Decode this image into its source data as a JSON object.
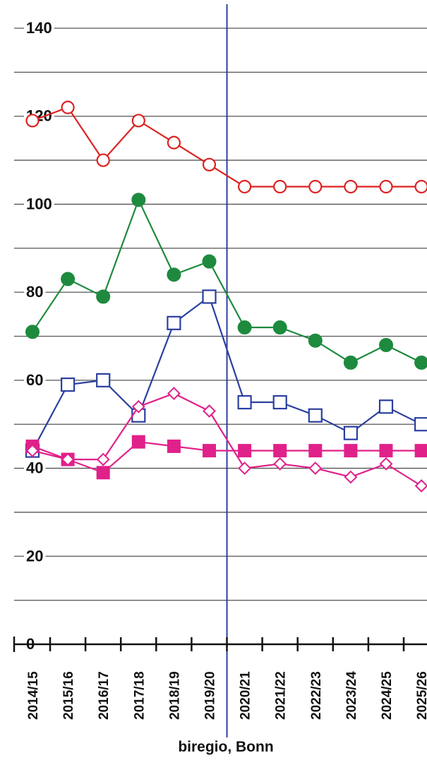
{
  "chart_data": {
    "type": "line",
    "categories": [
      "2014/15",
      "2015/16",
      "2016/17",
      "2017/18",
      "2018/19",
      "2019/20",
      "2020/21",
      "2021/22",
      "2022/23",
      "2023/24",
      "2024/25",
      "2025/26"
    ],
    "ylim": [
      0,
      140
    ],
    "yticks": [
      0,
      20,
      40,
      60,
      80,
      100,
      120,
      140
    ],
    "grid": true,
    "divider_after_category": "2019/20",
    "source": "biregio, Bonn",
    "series": [
      {
        "values": [
          119,
          122,
          110,
          119,
          114,
          109,
          104,
          104,
          104,
          104,
          104,
          104
        ],
        "color": "#dd2222",
        "marker": "circle-open"
      },
      {
        "values": [
          71,
          83,
          79,
          101,
          84,
          87,
          72,
          72,
          69,
          64,
          68,
          64
        ],
        "color": "#1e8a3e",
        "marker": "circle-filled"
      },
      {
        "values": [
          44,
          59,
          60,
          52,
          73,
          79,
          55,
          55,
          52,
          48,
          54,
          50
        ],
        "color": "#2b3fa0",
        "marker": "square-open"
      },
      {
        "values": [
          45,
          42,
          39,
          46,
          45,
          44,
          44,
          44,
          44,
          44,
          44,
          44
        ],
        "color": "#e0218a",
        "marker": "square-filled"
      },
      {
        "values": [
          44,
          42,
          42,
          54,
          57,
          53,
          40,
          41,
          40,
          38,
          41,
          36
        ],
        "color": "#e0218a",
        "marker": "diamond-open"
      }
    ]
  }
}
